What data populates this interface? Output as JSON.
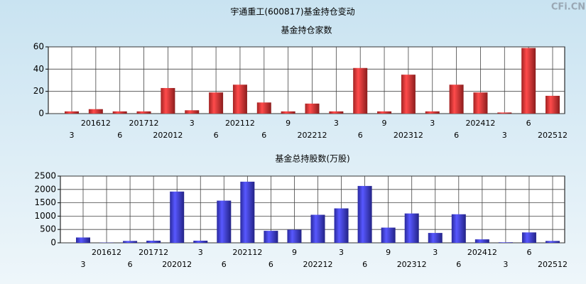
{
  "title": "宇通重工(600817)基金持仓变动",
  "watermark": "CFi.CN",
  "chart_data": [
    {
      "type": "bar",
      "title": "基金持仓家数",
      "color": "#e83030",
      "categories": [
        "3",
        "201612",
        "6",
        "201712",
        "202012",
        "3",
        "6",
        "202112",
        "6",
        "9",
        "202212",
        "3",
        "6",
        "9",
        "202312",
        "3",
        "6",
        "202412",
        "3",
        "6",
        "202512"
      ],
      "values": [
        2,
        4,
        2,
        2,
        23,
        3,
        19,
        26,
        10,
        2,
        9,
        2,
        41,
        2,
        35,
        2,
        26,
        19,
        1,
        59,
        16
      ],
      "ylim": [
        0,
        60
      ],
      "yticks": [
        0,
        20,
        40,
        60
      ],
      "grid": true
    },
    {
      "type": "bar",
      "title": "基金总持股数(万股)",
      "color": "#3a3ae0",
      "categories": [
        "3",
        "201612",
        "6",
        "201712",
        "202012",
        "3",
        "6",
        "202112",
        "6",
        "9",
        "202212",
        "3",
        "6",
        "9",
        "202312",
        "3",
        "6",
        "202412",
        "3",
        "6",
        "202512"
      ],
      "values": [
        200,
        10,
        70,
        80,
        1920,
        80,
        1580,
        2290,
        450,
        490,
        1050,
        1290,
        2130,
        570,
        1100,
        370,
        1070,
        130,
        20,
        390,
        70
      ],
      "ylim": [
        0,
        2500
      ],
      "yticks": [
        0,
        500,
        1000,
        1500,
        2000,
        2500
      ],
      "grid": true
    }
  ]
}
